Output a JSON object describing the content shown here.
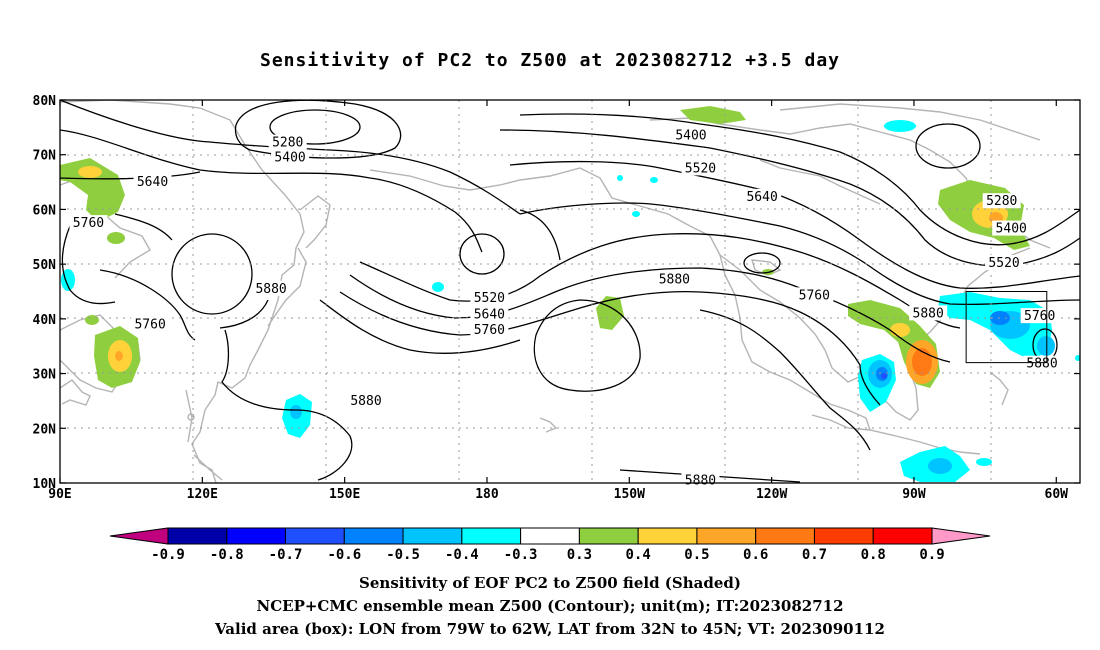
{
  "title": "Sensitivity of PC2 to Z500 at 2023082712 +3.5 day",
  "map": {
    "lon_range": [
      90,
      305
    ],
    "lat_range": [
      10,
      80
    ],
    "x_ticks": [
      "90E",
      "120E",
      "150E",
      "180",
      "150W",
      "120W",
      "90W",
      "60W"
    ],
    "y_ticks": [
      "80N",
      "70N",
      "60N",
      "50N",
      "40N",
      "30N",
      "20N",
      "10N"
    ],
    "grid": "dotted",
    "contour_labels": [
      {
        "text": "5400",
        "lon": 223,
        "lat": 73.5
      },
      {
        "text": "5520",
        "lon": 225,
        "lat": 67.5
      },
      {
        "text": "5640",
        "lon": 238,
        "lat": 62.3
      },
      {
        "text": "5280",
        "lon": 288.5,
        "lat": 61.5
      },
      {
        "text": "5400",
        "lon": 290.5,
        "lat": 56.5
      },
      {
        "text": "5520",
        "lon": 289,
        "lat": 50.2
      },
      {
        "text": "5760",
        "lon": 296.5,
        "lat": 40.5
      },
      {
        "text": "5880",
        "lon": 297,
        "lat": 31.8
      },
      {
        "text": "5880",
        "lon": 273,
        "lat": 41.0
      },
      {
        "text": "5760",
        "lon": 249,
        "lat": 44.3
      },
      {
        "text": "5880",
        "lon": 219.5,
        "lat": 47.2
      },
      {
        "text": "5280",
        "lon": 138,
        "lat": 72.2
      },
      {
        "text": "5400",
        "lon": 138.5,
        "lat": 69.5
      },
      {
        "text": "5640",
        "lon": 109.5,
        "lat": 65.0
      },
      {
        "text": "5760",
        "lon": 96,
        "lat": 57.5
      },
      {
        "text": "5880",
        "lon": 134.5,
        "lat": 45.5
      },
      {
        "text": "5760",
        "lon": 109,
        "lat": 39.0
      },
      {
        "text": "5520",
        "lon": 180.5,
        "lat": 43.8
      },
      {
        "text": "5640",
        "lon": 180.5,
        "lat": 40.8
      },
      {
        "text": "5760",
        "lon": 180.5,
        "lat": 38.0
      },
      {
        "text": "5880",
        "lon": 154.5,
        "lat": 25.0
      },
      {
        "text": "5880",
        "lon": 225,
        "lat": 10.5
      }
    ],
    "box": {
      "lon": [
        281,
        298
      ],
      "lat": [
        32,
        45
      ]
    }
  },
  "colorbar": {
    "labels": [
      "-0.9",
      "-0.8",
      "-0.7",
      "-0.6",
      "-0.5",
      "-0.4",
      "-0.3",
      "0.3",
      "0.4",
      "0.5",
      "0.6",
      "0.7",
      "0.8",
      "0.9"
    ],
    "colors": [
      "#c0007f",
      "#0000a8",
      "#0000ff",
      "#1f4fff",
      "#0082ff",
      "#00c4ff",
      "#00ffff",
      "#ffffff",
      "#8fcf3f",
      "#ffd23a",
      "#ffa628",
      "#ff7a14",
      "#ff3c00",
      "#ff0000",
      "#ff99c8"
    ]
  },
  "footer": {
    "line1": "Sensitivity of EOF PC2 to Z500 field (Shaded)",
    "line2": "NCEP+CMC ensemble mean Z500 (Contour); unit(m); IT:2023082712",
    "line3": "Valid area (box): LON from 79W to 62W, LAT from 32N to 45N; VT: 2023090112"
  }
}
